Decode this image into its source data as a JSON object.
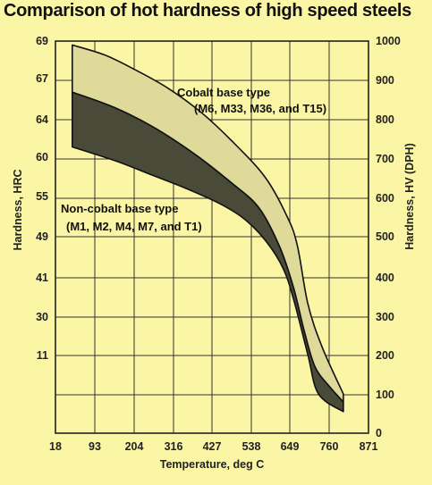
{
  "chart_data": {
    "type": "area",
    "title": "Comparison of hot hardness of high speed steels",
    "xlabel": "Temperature, deg C",
    "ylabel_left": "Hardness, HRC",
    "ylabel_right": "Hardness, HV (DPH)",
    "x_ticks": [
      "18",
      "93",
      "204",
      "316",
      "427",
      "538",
      "649",
      "760",
      "871"
    ],
    "y_left_ticks": [
      "69",
      "67",
      "64",
      "60",
      "55",
      "49",
      "41",
      "30",
      "11"
    ],
    "y_right_ticks": [
      "1000",
      "900",
      "800",
      "700",
      "600",
      "500",
      "400",
      "300",
      "200",
      "100",
      "0"
    ],
    "xlim": [
      18,
      871
    ],
    "ylim_hv": [
      0,
      1000
    ],
    "grid": true,
    "colors": {
      "light_band": "#dfd99a",
      "dark_band": "#4a4a38",
      "background": "#fbf5a6"
    },
    "series": [
      {
        "name": "Cobalt base type (M6, M33, M36, and T15)",
        "upper": [
          [
            50,
            990
          ],
          [
            120,
            965
          ],
          [
            200,
            930
          ],
          [
            300,
            880
          ],
          [
            400,
            815
          ],
          [
            500,
            730
          ],
          [
            580,
            650
          ],
          [
            640,
            555
          ],
          [
            670,
            480
          ],
          [
            700,
            330
          ],
          [
            740,
            220
          ],
          [
            800,
            100
          ]
        ],
        "lower": [
          [
            50,
            870
          ],
          [
            150,
            830
          ],
          [
            260,
            780
          ],
          [
            380,
            710
          ],
          [
            480,
            640
          ],
          [
            560,
            575
          ],
          [
            620,
            475
          ],
          [
            660,
            370
          ],
          [
            690,
            260
          ],
          [
            720,
            170
          ],
          [
            760,
            120
          ],
          [
            800,
            80
          ]
        ]
      },
      {
        "name": "Non-cobalt base type (M1, M2, M4, M7, and T1)",
        "upper": [
          [
            50,
            870
          ],
          [
            150,
            830
          ],
          [
            260,
            780
          ],
          [
            380,
            710
          ],
          [
            480,
            640
          ],
          [
            560,
            575
          ],
          [
            620,
            475
          ],
          [
            660,
            370
          ],
          [
            690,
            260
          ],
          [
            720,
            170
          ],
          [
            760,
            120
          ],
          [
            800,
            80
          ]
        ],
        "lower": [
          [
            50,
            730
          ],
          [
            150,
            695
          ],
          [
            250,
            660
          ],
          [
            350,
            625
          ],
          [
            450,
            585
          ],
          [
            520,
            545
          ],
          [
            580,
            490
          ],
          [
            630,
            420
          ],
          [
            660,
            340
          ],
          [
            700,
            200
          ],
          [
            730,
            100
          ],
          [
            800,
            55
          ]
        ]
      }
    ],
    "annotations": [
      {
        "lines": [
          "Cobalt base type",
          "(M6, M33, M36, and T15)"
        ]
      },
      {
        "lines": [
          "Non-cobalt base type",
          "(M1, M2, M4, M7, and T1)"
        ]
      }
    ]
  }
}
